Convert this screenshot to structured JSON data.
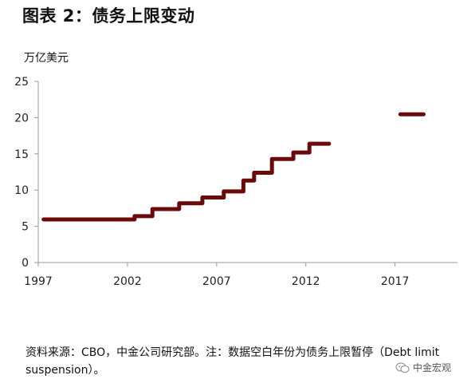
{
  "title": "图表 2：债务上限变动",
  "unit_label": "万亿美元",
  "source_note": "资料来源：CBO，中金公司研究部。注：数据空白年份为债务上限暂停（Debt limit suspension）。",
  "watermark": "中金宏观",
  "chart_data": {
    "type": "line",
    "step": true,
    "line_color": "#6B0A0A",
    "grid": false,
    "xlim": [
      1997,
      2020.5
    ],
    "ylim": [
      0,
      25
    ],
    "x_ticks": [
      "1997",
      "2002",
      "2007",
      "2012",
      "2017"
    ],
    "y_ticks": [
      "0",
      "5",
      "10",
      "15",
      "20",
      "25"
    ],
    "segments": [
      {
        "x_start": 1997.3,
        "x_end": 2002.4,
        "y": 5.95
      },
      {
        "x_start": 2002.4,
        "x_end": 2003.4,
        "y": 6.4
      },
      {
        "x_start": 2003.4,
        "x_end": 2004.9,
        "y": 7.38
      },
      {
        "x_start": 2004.9,
        "x_end": 2006.2,
        "y": 8.18
      },
      {
        "x_start": 2006.2,
        "x_end": 2007.4,
        "y": 8.97
      },
      {
        "x_start": 2007.4,
        "x_end": 2008.5,
        "y": 9.82
      },
      {
        "x_start": 2008.5,
        "x_end": 2009.1,
        "y": 11.32
      },
      {
        "x_start": 2009.1,
        "x_end": 2010.1,
        "y": 12.39
      },
      {
        "x_start": 2010.1,
        "x_end": 2011.3,
        "y": 14.29
      },
      {
        "x_start": 2011.3,
        "x_end": 2012.2,
        "y": 15.19
      },
      {
        "x_start": 2012.2,
        "x_end": 2013.3,
        "y": 16.39
      },
      {
        "x_start": 2017.3,
        "x_end": 2018.6,
        "y": 20.46
      }
    ]
  }
}
